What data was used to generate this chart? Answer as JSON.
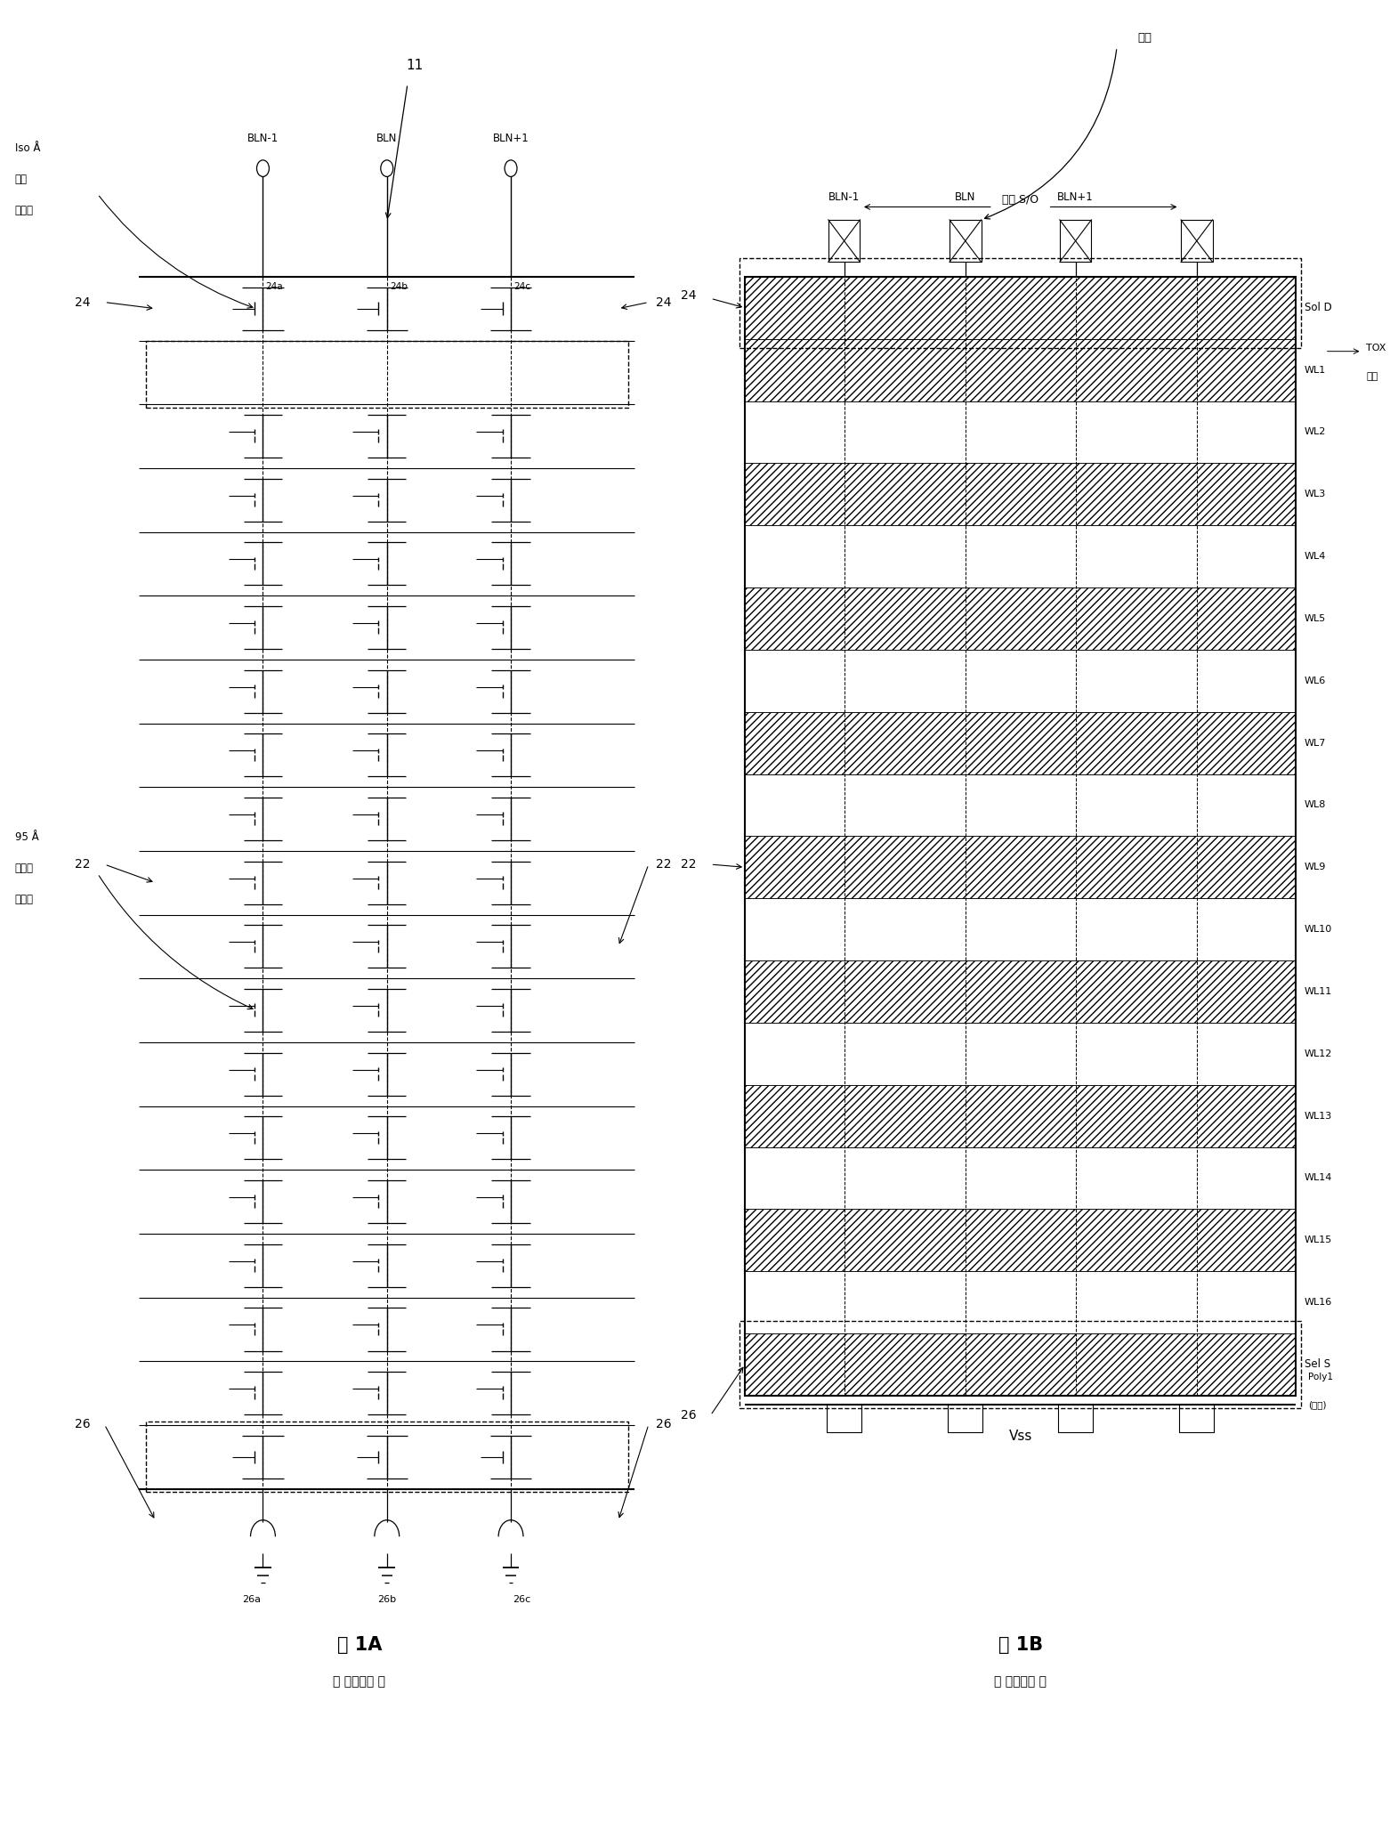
{
  "fig_width": 15.62,
  "fig_height": 20.66,
  "bg_color": "#ffffff",
  "title_1a": "图 1A",
  "title_1b": "图 1B",
  "subtitle": "（ 现有技术 ）",
  "label_iso_line1": "Iso Å",
  "label_iso_line2": "选择",
  "label_iso_line3": "晶体管",
  "label_95_line1": "95 Å",
  "label_95_line2": "隧道氧",
  "label_95_line3": "化单元",
  "label_11": "11",
  "label_24a": "24a",
  "label_24b": "24b",
  "label_24c": "24c",
  "label_26a": "26a",
  "label_26b": "26b",
  "label_26c": "26c",
  "label_bln_m1": "BLN-1",
  "label_bln": "BLN",
  "label_bln_p1": "BLN+1",
  "label_contact": "接触",
  "label_core_so": "核心 S/O",
  "label_sol_d": "Sol D",
  "label_wl": [
    "WL1",
    "WL2",
    "WL3",
    "WL4",
    "WL5",
    "WL6",
    "WL7",
    "WL8",
    "WL9",
    "WL10",
    "WL11",
    "WL12",
    "WL13",
    "WL14",
    "WL15",
    "WL16"
  ],
  "label_tox_line1": "TOX",
  "label_tox_line2": "掩模",
  "label_poly1_line1": "Poly1",
  "label_poly1_line2": "(蚀刻)",
  "label_sel_s": "Sel S",
  "label_vss": "Vss",
  "label_24": "24",
  "label_22": "22",
  "label_26": "26"
}
